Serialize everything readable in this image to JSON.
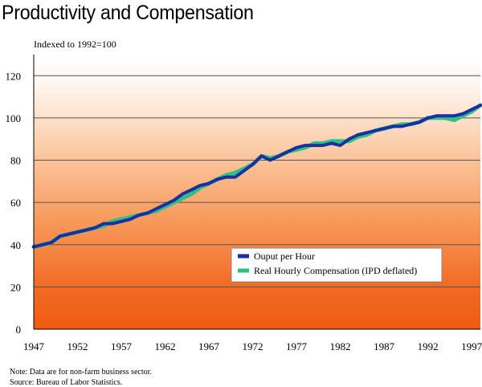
{
  "chart_data": {
    "type": "line",
    "title": "Productivity and Compensation",
    "ylabel": "Indexed to 1992=100",
    "xlabel": "",
    "xlim": [
      1947,
      1998
    ],
    "ylim": [
      0,
      130
    ],
    "yticks": [
      0,
      20,
      40,
      60,
      80,
      100,
      120
    ],
    "xticks": [
      1947,
      1952,
      1957,
      1962,
      1967,
      1972,
      1977,
      1982,
      1987,
      1992,
      1997
    ],
    "grid": true,
    "legend_position": "lower-right",
    "x": [
      1947,
      1948,
      1949,
      1950,
      1951,
      1952,
      1953,
      1954,
      1955,
      1956,
      1957,
      1958,
      1959,
      1960,
      1961,
      1962,
      1963,
      1964,
      1965,
      1966,
      1967,
      1968,
      1969,
      1970,
      1971,
      1972,
      1973,
      1974,
      1975,
      1976,
      1977,
      1978,
      1979,
      1980,
      1981,
      1982,
      1983,
      1984,
      1985,
      1986,
      1987,
      1988,
      1989,
      1990,
      1991,
      1992,
      1993,
      1994,
      1995,
      1996,
      1997,
      1998
    ],
    "series": [
      {
        "name": "Ouput per Hour",
        "color": "#1a2fa0",
        "values": [
          39,
          40,
          41,
          44,
          45,
          46,
          47,
          48,
          50,
          50,
          51,
          52,
          54,
          55,
          57,
          59,
          61,
          64,
          66,
          68,
          69,
          71,
          72,
          72,
          75,
          78,
          82,
          80,
          82,
          84,
          86,
          87,
          87,
          87,
          88,
          87,
          90,
          92,
          93,
          94,
          95,
          96,
          96,
          97,
          98,
          100,
          101,
          101,
          101,
          102,
          104,
          106
        ]
      },
      {
        "name": "Real Hourly Compensation (IPD deflated)",
        "color": "#2fbf86",
        "values": [
          39,
          40,
          41,
          44,
          45,
          46,
          47,
          48,
          49,
          51,
          52,
          53,
          54,
          55,
          56,
          58,
          60,
          62,
          64,
          67,
          69,
          71,
          73,
          74,
          76,
          78,
          82,
          81,
          82,
          84,
          85,
          86,
          88,
          88,
          89,
          89,
          89,
          91,
          92,
          94,
          95,
          96,
          97,
          97,
          98,
          100,
          100,
          100,
          99,
          101,
          103,
          106
        ]
      }
    ]
  },
  "notes": {
    "note1": "Note: Data are for non-farm business sector.",
    "note2": "Source: Bureau of Labor Statistics."
  }
}
